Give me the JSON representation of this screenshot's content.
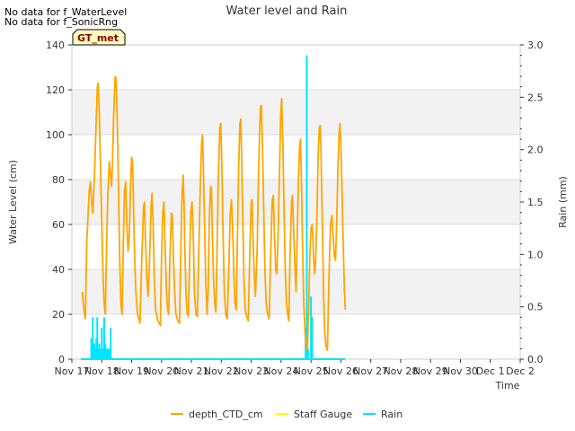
{
  "chart_data": {
    "type": "line",
    "title": "Water level and Rain",
    "xlabel": "Time",
    "ylabel_left": "Water Level (cm)",
    "ylabel_right": "Rain (mm)",
    "ylim_left": [
      0,
      140
    ],
    "ylim_right": [
      0,
      3.0
    ],
    "x_tick_labels": [
      "Nov 17",
      "Nov 18",
      "Nov 19",
      "Nov 20",
      "Nov 21",
      "Nov 22",
      "Nov 23",
      "Nov 24",
      "Nov 25",
      "Nov 26",
      "Nov 27",
      "Nov 28",
      "Nov 29",
      "Nov 30",
      "Dec 1",
      "Dec 2"
    ],
    "y_left_ticks": [
      0,
      20,
      40,
      60,
      80,
      100,
      120,
      140
    ],
    "y_right_ticks": [
      "0.0",
      "0.5",
      "1.0",
      "1.5",
      "2.0",
      "2.5",
      "3.0"
    ],
    "notes": [
      "No data for f_WaterLevel",
      "No data for f_SonicRng"
    ],
    "badge": "GT_met",
    "legend": [
      {
        "name": "depth_CTD_cm",
        "color": "#FFA500"
      },
      {
        "name": "Staff Gauge",
        "color": "#FFFF00"
      },
      {
        "name": "Rain",
        "color": "#00E5FF"
      }
    ],
    "series": {
      "depth_CTD_cm": {
        "color": "#FFA500",
        "points": [
          [
            0.35,
            30
          ],
          [
            0.4,
            22
          ],
          [
            0.45,
            18
          ],
          [
            0.5,
            52
          ],
          [
            0.58,
            75
          ],
          [
            0.62,
            79
          ],
          [
            0.66,
            70
          ],
          [
            0.7,
            65
          ],
          [
            0.75,
            80
          ],
          [
            0.8,
            100
          ],
          [
            0.85,
            121
          ],
          [
            0.88,
            123
          ],
          [
            0.92,
            108
          ],
          [
            0.96,
            85
          ],
          [
            1.0,
            60
          ],
          [
            1.04,
            38
          ],
          [
            1.08,
            25
          ],
          [
            1.12,
            20
          ],
          [
            1.16,
            50
          ],
          [
            1.2,
            72
          ],
          [
            1.25,
            88
          ],
          [
            1.3,
            81
          ],
          [
            1.33,
            77
          ],
          [
            1.36,
            88
          ],
          [
            1.4,
            110
          ],
          [
            1.45,
            126
          ],
          [
            1.48,
            125
          ],
          [
            1.52,
            105
          ],
          [
            1.56,
            75
          ],
          [
            1.6,
            45
          ],
          [
            1.64,
            25
          ],
          [
            1.68,
            20
          ],
          [
            1.72,
            50
          ],
          [
            1.76,
            75
          ],
          [
            1.8,
            79
          ],
          [
            1.84,
            60
          ],
          [
            1.88,
            48
          ],
          [
            1.92,
            55
          ],
          [
            1.96,
            75
          ],
          [
            2.0,
            90
          ],
          [
            2.03,
            88
          ],
          [
            2.06,
            70
          ],
          [
            2.1,
            45
          ],
          [
            2.14,
            30
          ],
          [
            2.2,
            20
          ],
          [
            2.28,
            16
          ],
          [
            2.34,
            45
          ],
          [
            2.4,
            68
          ],
          [
            2.43,
            70
          ],
          [
            2.46,
            55
          ],
          [
            2.5,
            38
          ],
          [
            2.55,
            28
          ],
          [
            2.6,
            45
          ],
          [
            2.65,
            68
          ],
          [
            2.68,
            74
          ],
          [
            2.72,
            60
          ],
          [
            2.76,
            35
          ],
          [
            2.8,
            22
          ],
          [
            2.88,
            17
          ],
          [
            2.96,
            15
          ],
          [
            3.0,
            45
          ],
          [
            3.04,
            65
          ],
          [
            3.08,
            70
          ],
          [
            3.12,
            50
          ],
          [
            3.16,
            32
          ],
          [
            3.2,
            22
          ],
          [
            3.24,
            20
          ],
          [
            3.28,
            45
          ],
          [
            3.33,
            65
          ],
          [
            3.36,
            64
          ],
          [
            3.4,
            45
          ],
          [
            3.44,
            30
          ],
          [
            3.48,
            20
          ],
          [
            3.55,
            17
          ],
          [
            3.6,
            16
          ],
          [
            3.64,
            45
          ],
          [
            3.68,
            70
          ],
          [
            3.72,
            82
          ],
          [
            3.75,
            70
          ],
          [
            3.78,
            50
          ],
          [
            3.82,
            28
          ],
          [
            3.86,
            20
          ],
          [
            3.9,
            19
          ],
          [
            3.94,
            45
          ],
          [
            3.98,
            65
          ],
          [
            4.02,
            70
          ],
          [
            4.06,
            55
          ],
          [
            4.1,
            30
          ],
          [
            4.15,
            20
          ],
          [
            4.2,
            19
          ],
          [
            4.25,
            50
          ],
          [
            4.3,
            78
          ],
          [
            4.34,
            96
          ],
          [
            4.37,
            100
          ],
          [
            4.4,
            85
          ],
          [
            4.44,
            60
          ],
          [
            4.48,
            35
          ],
          [
            4.52,
            20
          ],
          [
            4.56,
            30
          ],
          [
            4.6,
            62
          ],
          [
            4.64,
            77
          ],
          [
            4.67,
            76
          ],
          [
            4.7,
            55
          ],
          [
            4.74,
            35
          ],
          [
            4.78,
            25
          ],
          [
            4.82,
            21
          ],
          [
            4.86,
            50
          ],
          [
            4.9,
            80
          ],
          [
            4.95,
            103
          ],
          [
            4.98,
            105
          ],
          [
            5.02,
            85
          ],
          [
            5.06,
            55
          ],
          [
            5.1,
            30
          ],
          [
            5.15,
            20
          ],
          [
            5.2,
            18
          ],
          [
            5.25,
            40
          ],
          [
            5.3,
            65
          ],
          [
            5.34,
            71
          ],
          [
            5.38,
            58
          ],
          [
            5.42,
            38
          ],
          [
            5.46,
            25
          ],
          [
            5.5,
            22
          ],
          [
            5.54,
            55
          ],
          [
            5.58,
            85
          ],
          [
            5.62,
            105
          ],
          [
            5.65,
            107
          ],
          [
            5.68,
            90
          ],
          [
            5.72,
            60
          ],
          [
            5.76,
            35
          ],
          [
            5.8,
            22
          ],
          [
            5.85,
            19
          ],
          [
            5.9,
            17
          ],
          [
            5.95,
            45
          ],
          [
            6.0,
            70
          ],
          [
            6.03,
            71
          ],
          [
            6.06,
            55
          ],
          [
            6.1,
            38
          ],
          [
            6.14,
            28
          ],
          [
            6.2,
            50
          ],
          [
            6.24,
            80
          ],
          [
            6.28,
            100
          ],
          [
            6.31,
            112
          ],
          [
            6.34,
            113
          ],
          [
            6.38,
            95
          ],
          [
            6.42,
            65
          ],
          [
            6.46,
            40
          ],
          [
            6.5,
            25
          ],
          [
            6.55,
            20
          ],
          [
            6.6,
            18
          ],
          [
            6.65,
            45
          ],
          [
            6.7,
            70
          ],
          [
            6.74,
            73
          ],
          [
            6.78,
            55
          ],
          [
            6.82,
            40
          ],
          [
            6.86,
            38
          ],
          [
            6.9,
            55
          ],
          [
            6.95,
            85
          ],
          [
            6.99,
            110
          ],
          [
            7.02,
            116
          ],
          [
            7.06,
            95
          ],
          [
            7.1,
            65
          ],
          [
            7.14,
            40
          ],
          [
            7.18,
            25
          ],
          [
            7.22,
            20
          ],
          [
            7.26,
            17
          ],
          [
            7.3,
            45
          ],
          [
            7.35,
            70
          ],
          [
            7.38,
            73
          ],
          [
            7.42,
            58
          ],
          [
            7.46,
            42
          ],
          [
            7.5,
            30
          ],
          [
            7.54,
            55
          ],
          [
            7.58,
            80
          ],
          [
            7.62,
            95
          ],
          [
            7.65,
            98
          ],
          [
            7.68,
            80
          ],
          [
            7.72,
            50
          ],
          [
            7.76,
            25
          ],
          [
            7.8,
            12
          ],
          [
            7.84,
            6
          ],
          [
            7.88,
            4
          ],
          [
            7.92,
            20
          ],
          [
            7.96,
            45
          ],
          [
            8.0,
            58
          ],
          [
            8.04,
            60
          ],
          [
            8.08,
            48
          ],
          [
            8.12,
            38
          ],
          [
            8.16,
            45
          ],
          [
            8.2,
            65
          ],
          [
            8.24,
            90
          ],
          [
            8.28,
            103
          ],
          [
            8.31,
            104
          ],
          [
            8.34,
            90
          ],
          [
            8.38,
            60
          ],
          [
            8.42,
            30
          ],
          [
            8.46,
            12
          ],
          [
            8.5,
            6
          ],
          [
            8.55,
            4
          ],
          [
            8.6,
            35
          ],
          [
            8.65,
            60
          ],
          [
            8.7,
            64
          ],
          [
            8.74,
            55
          ],
          [
            8.78,
            46
          ],
          [
            8.82,
            44
          ],
          [
            8.86,
            60
          ],
          [
            8.9,
            85
          ],
          [
            8.94,
            100
          ],
          [
            8.97,
            105
          ],
          [
            9.0,
            95
          ],
          [
            9.04,
            75
          ],
          [
            9.08,
            50
          ],
          [
            9.12,
            30
          ],
          [
            9.15,
            22
          ]
        ]
      },
      "Rain": {
        "color": "#00E5FF",
        "points": [
          [
            0.65,
            0.2
          ],
          [
            0.7,
            0.4
          ],
          [
            0.75,
            0.15
          ],
          [
            0.8,
            0.1
          ],
          [
            0.82,
            0.2
          ],
          [
            0.85,
            0.4
          ],
          [
            0.88,
            0.1
          ],
          [
            0.92,
            0.15
          ],
          [
            0.96,
            0.1
          ],
          [
            1.0,
            0.3
          ],
          [
            1.04,
            0.1
          ],
          [
            1.08,
            0.4
          ],
          [
            1.12,
            0.15
          ],
          [
            1.16,
            0.1
          ],
          [
            1.2,
            0.1
          ],
          [
            1.25,
            0.1
          ],
          [
            1.3,
            0.3
          ],
          [
            7.82,
            0.3
          ],
          [
            7.86,
            2.9
          ],
          [
            7.9,
            0.1
          ],
          [
            8.0,
            0.6
          ],
          [
            8.04,
            0.4
          ]
        ]
      },
      "Staff Gauge": {
        "color": "#FFFF00",
        "points": []
      }
    }
  }
}
